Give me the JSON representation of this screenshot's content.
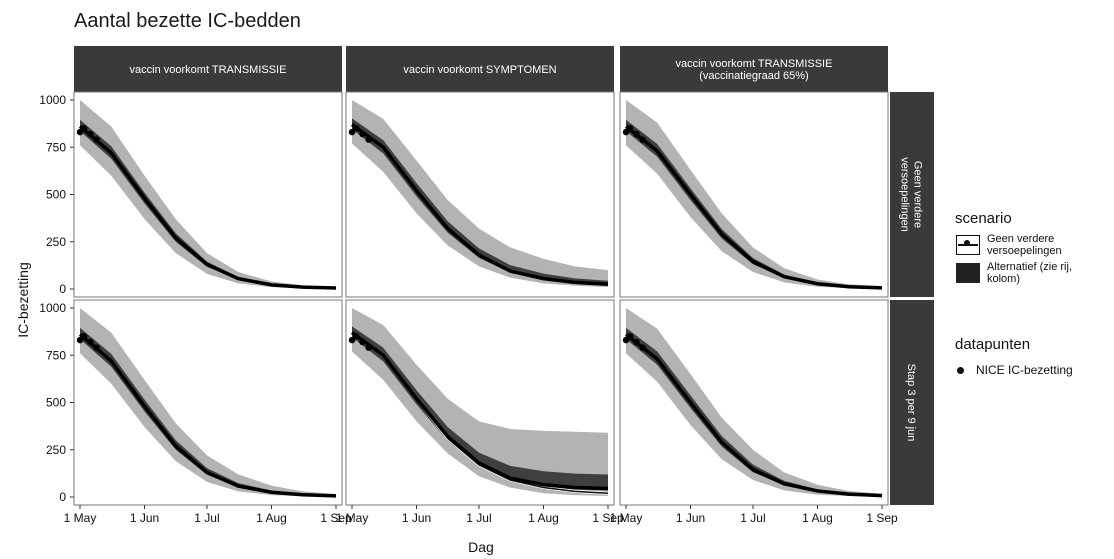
{
  "title": "Aantal bezette IC-bedden",
  "chart_data": {
    "type": "line",
    "ylabel": "IC-bezetting",
    "xlabel": "Dag",
    "ylim": [
      0,
      1000
    ],
    "y_ticks": [
      0,
      250,
      500,
      750,
      1000
    ],
    "x_ticks": [
      "1 May",
      "1 Jun",
      "1 Jul",
      "1 Aug",
      "1 Sep"
    ],
    "x_dates": [
      "2021-05-01",
      "2021-06-01",
      "2021-07-01",
      "2021-08-01",
      "2021-09-01"
    ],
    "columns": [
      "vaccin voorkomt TRANSMISSIE",
      "vaccin voorkomt SYMPTOMEN",
      "vaccin voorkomt TRANSMISSIE\n(vaccinatiegraad 65%)"
    ],
    "rows": [
      "Geen verdere\nversoepelingen",
      "Stap 3 per 9 jun"
    ],
    "legend_title": "scenario",
    "series_names": [
      "Geen verdere versoepelingen",
      "Alternatief (zie rij, kolom)"
    ],
    "datapoints_title": "datapunten",
    "datapoints_label": "NICE IC-bezetting",
    "observed": {
      "x": [
        "2021-05-01",
        "2021-05-03",
        "2021-05-06",
        "2021-05-09"
      ],
      "y": [
        830,
        850,
        820,
        790
      ]
    },
    "panels": [
      {
        "row": 0,
        "col": 0,
        "x": [
          "2021-05-01",
          "2021-05-16",
          "2021-06-01",
          "2021-06-16",
          "2021-07-01",
          "2021-07-16",
          "2021-08-01",
          "2021-08-16",
          "2021-09-01"
        ],
        "median": [
          860,
          720,
          480,
          270,
          130,
          55,
          22,
          10,
          5
        ],
        "lower": [
          760,
          600,
          370,
          190,
          80,
          30,
          10,
          4,
          1
        ],
        "upper": [
          1000,
          860,
          600,
          370,
          190,
          90,
          40,
          20,
          12
        ]
      },
      {
        "row": 0,
        "col": 1,
        "x": [
          "2021-05-01",
          "2021-05-16",
          "2021-06-01",
          "2021-06-16",
          "2021-07-01",
          "2021-07-16",
          "2021-08-01",
          "2021-08-16",
          "2021-09-01"
        ],
        "median": [
          870,
          750,
          520,
          320,
          180,
          95,
          55,
          35,
          25
        ],
        "lower": [
          770,
          620,
          400,
          230,
          120,
          60,
          30,
          18,
          10
        ],
        "upper": [
          1000,
          900,
          680,
          470,
          320,
          220,
          160,
          120,
          100
        ]
      },
      {
        "row": 0,
        "col": 2,
        "x": [
          "2021-05-01",
          "2021-05-16",
          "2021-06-01",
          "2021-06-16",
          "2021-07-01",
          "2021-07-16",
          "2021-08-01",
          "2021-08-16",
          "2021-09-01"
        ],
        "median": [
          860,
          730,
          500,
          290,
          145,
          65,
          28,
          12,
          6
        ],
        "lower": [
          760,
          610,
          380,
          200,
          90,
          35,
          12,
          5,
          2
        ],
        "upper": [
          1000,
          880,
          630,
          400,
          220,
          110,
          50,
          25,
          15
        ]
      },
      {
        "row": 1,
        "col": 0,
        "x": [
          "2021-05-01",
          "2021-05-16",
          "2021-06-01",
          "2021-06-16",
          "2021-07-01",
          "2021-07-16",
          "2021-08-01",
          "2021-08-16",
          "2021-09-01"
        ],
        "median": [
          860,
          720,
          480,
          270,
          130,
          58,
          25,
          12,
          6
        ],
        "lower": [
          760,
          600,
          370,
          190,
          80,
          30,
          10,
          4,
          1
        ],
        "upper": [
          1000,
          870,
          620,
          390,
          220,
          120,
          60,
          30,
          15
        ]
      },
      {
        "row": 1,
        "col": 1,
        "x": [
          "2021-05-01",
          "2021-05-16",
          "2021-06-01",
          "2021-06-16",
          "2021-07-01",
          "2021-07-16",
          "2021-08-01",
          "2021-08-16",
          "2021-09-01"
        ],
        "median": [
          870,
          750,
          520,
          320,
          180,
          100,
          65,
          50,
          45
        ],
        "lower": [
          770,
          620,
          400,
          230,
          110,
          50,
          20,
          10,
          5
        ],
        "upper": [
          1000,
          910,
          700,
          520,
          400,
          360,
          350,
          345,
          340
        ],
        "baseline": [
          870,
          750,
          520,
          310,
          170,
          90,
          50,
          30,
          20
        ]
      },
      {
        "row": 1,
        "col": 2,
        "x": [
          "2021-05-01",
          "2021-05-16",
          "2021-06-01",
          "2021-06-16",
          "2021-07-01",
          "2021-07-16",
          "2021-08-01",
          "2021-08-16",
          "2021-09-01"
        ],
        "median": [
          860,
          730,
          500,
          290,
          145,
          70,
          32,
          15,
          7
        ],
        "lower": [
          760,
          610,
          380,
          200,
          90,
          35,
          12,
          5,
          2
        ],
        "upper": [
          1000,
          890,
          650,
          420,
          250,
          130,
          65,
          32,
          18
        ]
      }
    ]
  }
}
